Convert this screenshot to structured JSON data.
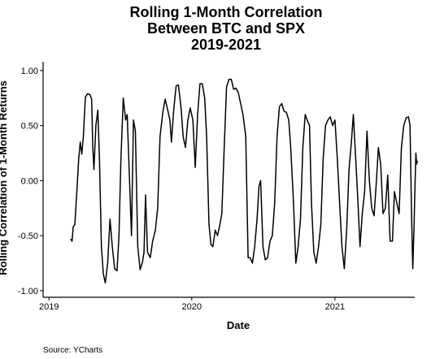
{
  "chart_data": {
    "type": "line",
    "title": [
      "Rolling 1-Month Correlation",
      "Between BTC and SPX",
      "2019-2021"
    ],
    "xlabel": "Date",
    "ylabel": "Rolling Correlation of 1-Month Returns",
    "caption": "Source:  YCharts",
    "x_ticks": [
      {
        "value": "2019-01-01",
        "label": "2019"
      },
      {
        "value": "2020-01-01",
        "label": "2020"
      },
      {
        "value": "2021-01-01",
        "label": "2021"
      }
    ],
    "y_ticks": [
      {
        "value": 1.0,
        "label": "1.00"
      },
      {
        "value": 0.5,
        "label": "0.50"
      },
      {
        "value": 0.0,
        "label": "0.00"
      },
      {
        "value": -0.5,
        "label": "-0.50"
      },
      {
        "value": -1.0,
        "label": "-1.00"
      }
    ],
    "xlim": [
      "2018-12-17",
      "2021-07-24"
    ],
    "ylim": [
      -1.06,
      1.08
    ],
    "grid": false,
    "series": [
      {
        "color": "#000000",
        "points": [
          [
            "2019-02-25",
            -0.53
          ],
          [
            "2019-03-01",
            -0.55
          ],
          [
            "2019-03-04",
            -0.42
          ],
          [
            "2019-03-08",
            -0.4
          ],
          [
            "2019-03-14",
            -0.05
          ],
          [
            "2019-03-18",
            0.2
          ],
          [
            "2019-03-22",
            0.35
          ],
          [
            "2019-03-26",
            0.24
          ],
          [
            "2019-03-30",
            0.4
          ],
          [
            "2019-04-04",
            0.76
          ],
          [
            "2019-04-10",
            0.79
          ],
          [
            "2019-04-16",
            0.78
          ],
          [
            "2019-04-20",
            0.74
          ],
          [
            "2019-04-23",
            0.3
          ],
          [
            "2019-04-26",
            0.1
          ],
          [
            "2019-05-01",
            0.5
          ],
          [
            "2019-05-06",
            0.64
          ],
          [
            "2019-05-10",
            0.2
          ],
          [
            "2019-05-15",
            -0.6
          ],
          [
            "2019-05-20",
            -0.85
          ],
          [
            "2019-05-25",
            -0.93
          ],
          [
            "2019-05-31",
            -0.75
          ],
          [
            "2019-06-06",
            -0.35
          ],
          [
            "2019-06-12",
            -0.6
          ],
          [
            "2019-06-18",
            -0.8
          ],
          [
            "2019-06-24",
            -0.82
          ],
          [
            "2019-06-29",
            -0.5
          ],
          [
            "2019-07-04",
            0.2
          ],
          [
            "2019-07-10",
            0.75
          ],
          [
            "2019-07-16",
            0.55
          ],
          [
            "2019-07-20",
            0.6
          ],
          [
            "2019-07-26",
            0.0
          ],
          [
            "2019-07-31",
            -0.5
          ],
          [
            "2019-08-05",
            0.55
          ],
          [
            "2019-08-10",
            0.45
          ],
          [
            "2019-08-16",
            -0.6
          ],
          [
            "2019-08-22",
            -0.81
          ],
          [
            "2019-08-28",
            -0.74
          ],
          [
            "2019-09-01",
            -0.65
          ],
          [
            "2019-09-05",
            -0.13
          ],
          [
            "2019-09-10",
            -0.65
          ],
          [
            "2019-09-17",
            -0.7
          ],
          [
            "2019-09-23",
            -0.55
          ],
          [
            "2019-09-30",
            -0.45
          ],
          [
            "2019-10-06",
            -0.25
          ],
          [
            "2019-10-12",
            0.4
          ],
          [
            "2019-10-19",
            0.62
          ],
          [
            "2019-10-25",
            0.74
          ],
          [
            "2019-10-31",
            0.65
          ],
          [
            "2019-11-06",
            0.55
          ],
          [
            "2019-11-10",
            0.35
          ],
          [
            "2019-11-16",
            0.65
          ],
          [
            "2019-11-22",
            0.86
          ],
          [
            "2019-11-28",
            0.87
          ],
          [
            "2019-12-05",
            0.65
          ],
          [
            "2019-12-10",
            0.4
          ],
          [
            "2019-12-16",
            0.3
          ],
          [
            "2019-12-22",
            0.55
          ],
          [
            "2019-12-28",
            0.66
          ],
          [
            "2020-01-04",
            0.55
          ],
          [
            "2020-01-10",
            0.12
          ],
          [
            "2020-01-16",
            0.6
          ],
          [
            "2020-01-22",
            0.88
          ],
          [
            "2020-01-28",
            0.88
          ],
          [
            "2020-02-03",
            0.75
          ],
          [
            "2020-02-08",
            0.4
          ],
          [
            "2020-02-14",
            -0.4
          ],
          [
            "2020-02-19",
            -0.58
          ],
          [
            "2020-02-24",
            -0.6
          ],
          [
            "2020-03-01",
            -0.45
          ],
          [
            "2020-03-07",
            -0.5
          ],
          [
            "2020-03-13",
            -0.4
          ],
          [
            "2020-03-18",
            -0.3
          ],
          [
            "2020-03-24",
            0.3
          ],
          [
            "2020-03-30",
            0.85
          ],
          [
            "2020-04-05",
            0.92
          ],
          [
            "2020-04-11",
            0.92
          ],
          [
            "2020-04-17",
            0.83
          ],
          [
            "2020-04-23",
            0.84
          ],
          [
            "2020-04-29",
            0.8
          ],
          [
            "2020-05-05",
            0.7
          ],
          [
            "2020-05-11",
            0.6
          ],
          [
            "2020-05-18",
            0.4
          ],
          [
            "2020-05-24",
            -0.7
          ],
          [
            "2020-05-29",
            -0.7
          ],
          [
            "2020-06-04",
            -0.75
          ],
          [
            "2020-06-10",
            -0.6
          ],
          [
            "2020-06-16",
            -0.35
          ],
          [
            "2020-06-21",
            -0.05
          ],
          [
            "2020-06-25",
            0.0
          ],
          [
            "2020-07-01",
            -0.6
          ],
          [
            "2020-07-07",
            -0.72
          ],
          [
            "2020-07-13",
            -0.7
          ],
          [
            "2020-07-19",
            -0.55
          ],
          [
            "2020-07-25",
            -0.5
          ],
          [
            "2020-07-31",
            -0.2
          ],
          [
            "2020-08-06",
            0.4
          ],
          [
            "2020-08-12",
            0.67
          ],
          [
            "2020-08-18",
            0.7
          ],
          [
            "2020-08-24",
            0.63
          ],
          [
            "2020-08-30",
            0.62
          ],
          [
            "2020-09-05",
            0.55
          ],
          [
            "2020-09-10",
            0.3
          ],
          [
            "2020-09-17",
            -0.2
          ],
          [
            "2020-09-23",
            -0.75
          ],
          [
            "2020-09-29",
            -0.6
          ],
          [
            "2020-10-05",
            -0.35
          ],
          [
            "2020-10-11",
            0.3
          ],
          [
            "2020-10-17",
            0.6
          ],
          [
            "2020-10-22",
            0.55
          ],
          [
            "2020-10-28",
            0.5
          ],
          [
            "2020-11-02",
            -0.2
          ],
          [
            "2020-11-08",
            -0.65
          ],
          [
            "2020-11-14",
            -0.75
          ],
          [
            "2020-11-20",
            -0.6
          ],
          [
            "2020-11-26",
            -0.4
          ],
          [
            "2020-12-02",
            0.2
          ],
          [
            "2020-12-08",
            0.5
          ],
          [
            "2020-12-14",
            0.55
          ],
          [
            "2020-12-20",
            0.58
          ],
          [
            "2020-12-26",
            0.5
          ],
          [
            "2021-01-01",
            0.55
          ],
          [
            "2021-01-07",
            0.2
          ],
          [
            "2021-01-13",
            -0.2
          ],
          [
            "2021-01-19",
            -0.6
          ],
          [
            "2021-01-25",
            -0.8
          ],
          [
            "2021-01-31",
            -0.45
          ],
          [
            "2021-02-06",
            0.1
          ],
          [
            "2021-02-12",
            0.35
          ],
          [
            "2021-02-17",
            0.6
          ],
          [
            "2021-02-23",
            0.2
          ],
          [
            "2021-03-01",
            -0.2
          ],
          [
            "2021-03-06",
            -0.6
          ],
          [
            "2021-03-12",
            -0.3
          ],
          [
            "2021-03-18",
            -0.1
          ],
          [
            "2021-03-24",
            0.45
          ],
          [
            "2021-03-30",
            0.0
          ],
          [
            "2021-04-05",
            -0.25
          ],
          [
            "2021-04-11",
            -0.32
          ],
          [
            "2021-04-17",
            0.0
          ],
          [
            "2021-04-22",
            0.3
          ],
          [
            "2021-04-28",
            0.15
          ],
          [
            "2021-05-04",
            -0.3
          ],
          [
            "2021-05-10",
            -0.25
          ],
          [
            "2021-05-16",
            0.05
          ],
          [
            "2021-05-22",
            -0.55
          ],
          [
            "2021-05-28",
            -0.55
          ],
          [
            "2021-06-02",
            -0.1
          ],
          [
            "2021-06-08",
            -0.2
          ],
          [
            "2021-06-14",
            -0.3
          ],
          [
            "2021-06-20",
            0.3
          ],
          [
            "2021-06-26",
            0.5
          ],
          [
            "2021-07-02",
            0.57
          ],
          [
            "2021-07-08",
            0.58
          ],
          [
            "2021-07-12",
            0.5
          ],
          [
            "2021-07-16",
            -0.35
          ],
          [
            "2021-07-19",
            -0.8
          ],
          [
            "2021-07-22",
            -0.45
          ],
          [
            "2021-07-25",
            0.0
          ],
          [
            "2021-07-27",
            0.25
          ],
          [
            "2021-07-29",
            0.15
          ],
          [
            "2021-07-31",
            0.18
          ]
        ]
      }
    ]
  }
}
